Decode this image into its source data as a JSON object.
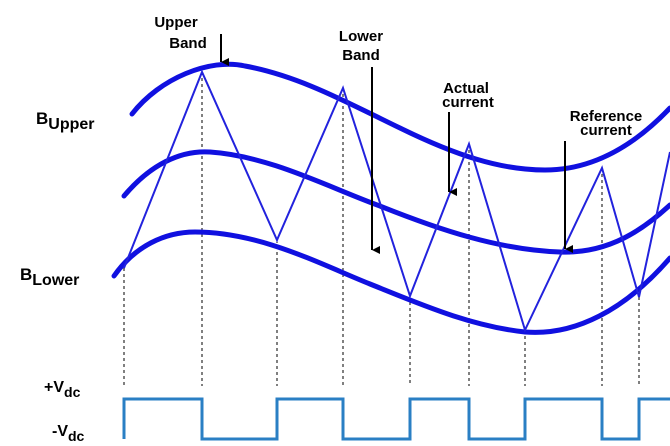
{
  "labels": {
    "upper_band": [
      "Upper",
      "Band"
    ],
    "lower_band": [
      "Lower",
      "Band"
    ],
    "actual_current": [
      "Actual",
      "current"
    ],
    "reference_current": [
      "Reference",
      "current"
    ],
    "b_upper": {
      "main": "B",
      "sub": "Upper"
    },
    "b_lower": {
      "main": "B",
      "sub": "Lower"
    },
    "plus_vdc": {
      "main": "+V",
      "sub": "dc"
    },
    "minus_vdc": {
      "main": "-V",
      "sub": "dc"
    }
  },
  "colors": {
    "band_curves": "#1010e0",
    "actual_current": "#2222dd",
    "pulse": "#2a7fc4",
    "text": "#000000"
  }
}
